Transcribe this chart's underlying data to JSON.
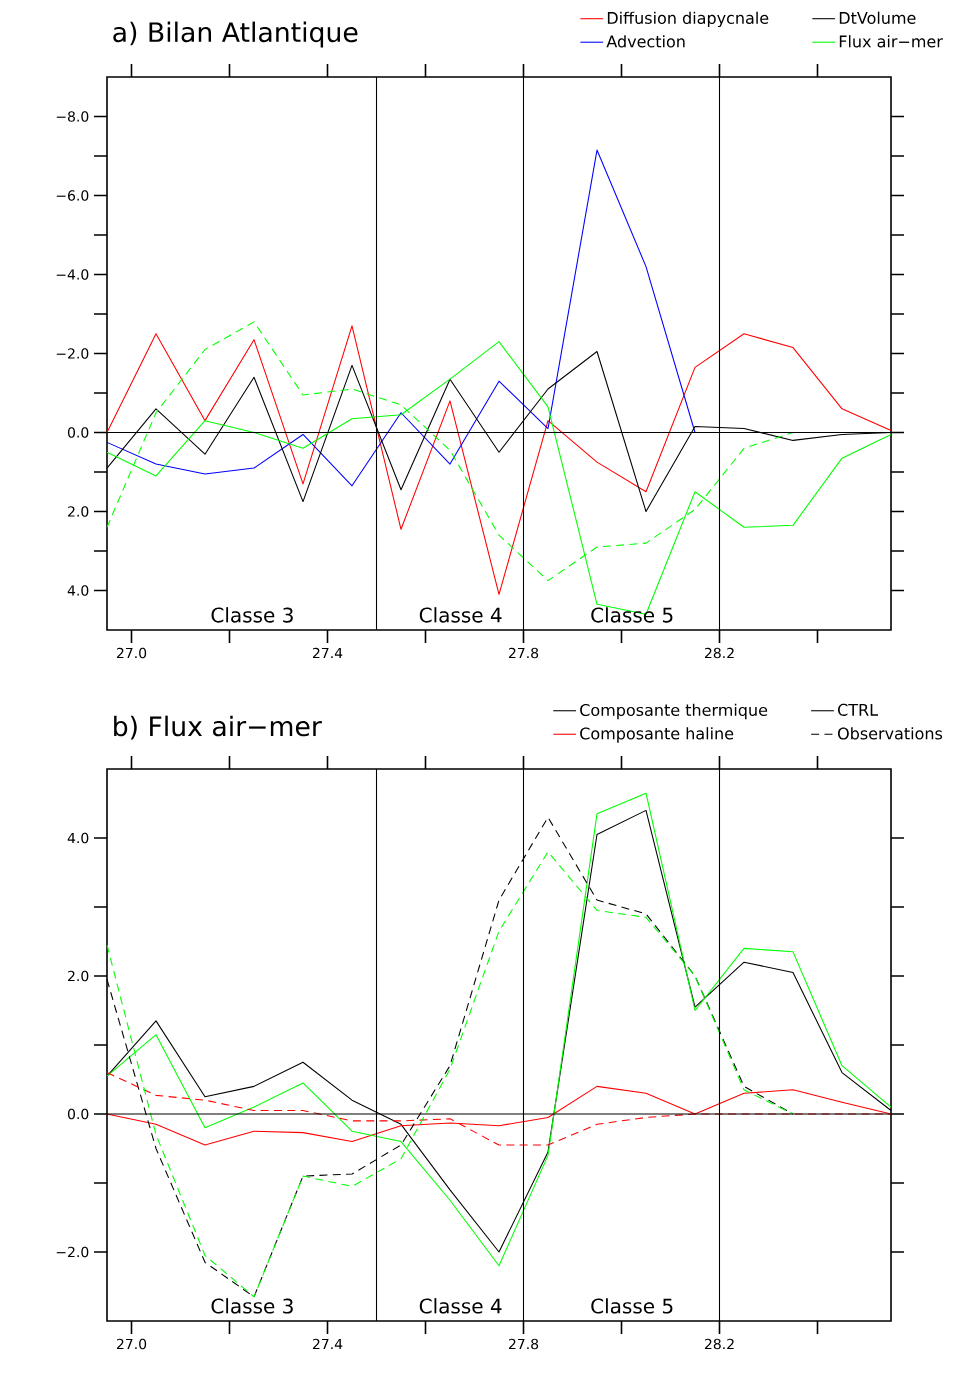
{
  "chart_data": [
    {
      "type": "line",
      "title": "a) Bilan Atlantique",
      "x": [
        26.95,
        27.05,
        27.15,
        27.25,
        27.35,
        27.45,
        27.55,
        27.65,
        27.75,
        27.85,
        27.95,
        28.05,
        28.15,
        28.25,
        28.35,
        28.45,
        28.55
      ],
      "series": [
        {
          "name": "Diffusion diapycnale",
          "color": "#ff0000",
          "values": [
            0,
            -2.5,
            -0.3,
            -2.35,
            1.3,
            -2.7,
            2.45,
            -0.8,
            4.1,
            -0.3,
            0.75,
            1.5,
            -1.65,
            -2.5,
            -2.15,
            -0.6,
            -0.05
          ]
        },
        {
          "name": "Advection",
          "color": "#0000ff",
          "values": [
            0.25,
            0.8,
            1.05,
            0.9,
            0.05,
            1.35,
            -0.5,
            0.8,
            -1.3,
            -0.1,
            -7.15,
            -4.2,
            0,
            0,
            null,
            null,
            null
          ]
        },
        {
          "name": "DtVolume",
          "color": "#000000",
          "values": [
            0.9,
            -0.6,
            0.55,
            -1.4,
            1.75,
            -1.7,
            1.45,
            -1.35,
            0.5,
            -1.1,
            -2.05,
            2.0,
            -0.15,
            -0.1,
            0.2,
            0.05,
            0
          ]
        },
        {
          "name": "Flux air−mer",
          "color": "#00ff00",
          "values": [
            0.5,
            1.1,
            -0.3,
            0,
            0.4,
            -0.35,
            -0.45,
            -1.35,
            -2.3,
            -0.65,
            4.35,
            4.6,
            1.5,
            2.4,
            2.35,
            0.65,
            0.05
          ]
        },
        {
          "color": "#00ff00",
          "line_style": "dashed",
          "values": [
            2.4,
            -0.5,
            -2.1,
            -2.8,
            -0.95,
            -1.1,
            -0.7,
            0.45,
            2.6,
            3.75,
            2.9,
            2.8,
            1.95,
            0.4,
            0,
            null,
            null
          ]
        }
      ],
      "xlim": [
        26.95,
        28.55
      ],
      "xticks": [
        {
          "value": 27.0,
          "label": "27.0"
        },
        {
          "value": 27.2,
          "label": null
        },
        {
          "value": 27.4,
          "label": "27.4"
        },
        {
          "value": 27.6,
          "label": null
        },
        {
          "value": 27.8,
          "label": "27.8"
        },
        {
          "value": 28.0,
          "label": null
        },
        {
          "value": 28.2,
          "label": "28.2"
        },
        {
          "value": 28.4,
          "label": null
        }
      ],
      "ylim": [
        5,
        -9
      ],
      "yticks": [
        {
          "value": -8,
          "label": "−8.0"
        },
        {
          "value": -7,
          "label": null
        },
        {
          "value": -6,
          "label": "−6.0"
        },
        {
          "value": -5,
          "label": null
        },
        {
          "value": -4,
          "label": "−4.0"
        },
        {
          "value": -3,
          "label": null
        },
        {
          "value": -2,
          "label": "−2.0"
        },
        {
          "value": -1,
          "label": null
        },
        {
          "value": 0,
          "label": "0.0"
        },
        {
          "value": 1,
          "label": null
        },
        {
          "value": 2,
          "label": "2.0"
        },
        {
          "value": 3,
          "label": null
        },
        {
          "value": 4,
          "label": "4.0"
        }
      ],
      "ref_lines": [
        {
          "axis": "y",
          "value": 0,
          "color": "#000000"
        },
        {
          "axis": "x",
          "value": 27.5,
          "color": "#000000"
        },
        {
          "axis": "x",
          "value": 27.8,
          "color": "#000000"
        },
        {
          "axis": "x",
          "value": 28.2,
          "color": "#000000"
        }
      ],
      "annotations": [
        "Classe  3",
        "Classe  4",
        "Classe  5"
      ],
      "legend": "top right"
    },
    {
      "type": "line",
      "title": "b) Flux air−mer",
      "x": [
        26.95,
        27.05,
        27.15,
        27.25,
        27.35,
        27.45,
        27.55,
        27.65,
        27.75,
        27.85,
        27.95,
        28.05,
        28.15,
        28.25,
        28.35,
        28.45,
        28.55
      ],
      "series": [
        {
          "name": "Composante thermique",
          "color": "#000000",
          "values": [
            0.55,
            1.35,
            0.25,
            0.4,
            0.75,
            0.2,
            -0.15,
            -1.1,
            -2.0,
            -0.55,
            4.05,
            4.4,
            1.55,
            2.2,
            2.05,
            0.6,
            0.05
          ]
        },
        {
          "name": "Composante haline",
          "color": "#ff0000",
          "values": [
            0,
            -0.15,
            -0.45,
            -0.25,
            -0.27,
            -0.4,
            -0.17,
            -0.13,
            -0.17,
            -0.05,
            0.4,
            0.3,
            0,
            0.3,
            0.35,
            0.17,
            0
          ]
        },
        {
          "color": "#00ff00",
          "values": [
            0.55,
            1.15,
            -0.2,
            0.1,
            0.45,
            -0.25,
            -0.4,
            -1.25,
            -2.2,
            -0.6,
            4.35,
            4.65,
            1.5,
            2.4,
            2.35,
            0.7,
            0.1
          ]
        },
        {
          "color": "#000000",
          "line_style": "dashed",
          "values": [
            1.95,
            -0.5,
            -2.15,
            -2.65,
            -0.9,
            -0.87,
            -0.45,
            0.7,
            3.1,
            4.3,
            3.1,
            2.9,
            2.0,
            0.4,
            0,
            null,
            null
          ]
        },
        {
          "color": "#ff0000",
          "line_style": "dashed",
          "values": [
            0.6,
            0.27,
            0.2,
            0.05,
            0.05,
            -0.1,
            -0.1,
            -0.07,
            -0.45,
            -0.45,
            -0.15,
            -0.05,
            0,
            0,
            0,
            0,
            0
          ]
        },
        {
          "color": "#00ff00",
          "line_style": "dashed",
          "values": [
            2.45,
            -0.3,
            -2.05,
            -2.65,
            -0.9,
            -1.05,
            -0.65,
            0.65,
            2.65,
            3.8,
            2.95,
            2.85,
            2.0,
            0.35,
            0,
            null,
            null
          ]
        }
      ],
      "xlim": [
        26.95,
        28.55
      ],
      "xticks": [
        {
          "value": 27.0,
          "label": "27.0"
        },
        {
          "value": 27.2,
          "label": null
        },
        {
          "value": 27.4,
          "label": "27.4"
        },
        {
          "value": 27.6,
          "label": null
        },
        {
          "value": 27.8,
          "label": "27.8"
        },
        {
          "value": 28.0,
          "label": null
        },
        {
          "value": 28.2,
          "label": "28.2"
        },
        {
          "value": 28.4,
          "label": null
        }
      ],
      "ylim": [
        -3,
        5
      ],
      "yticks": [
        {
          "value": -2,
          "label": "−2.0"
        },
        {
          "value": -1,
          "label": null
        },
        {
          "value": 0,
          "label": "0.0"
        },
        {
          "value": 1,
          "label": null
        },
        {
          "value": 2,
          "label": "2.0"
        },
        {
          "value": 3,
          "label": null
        },
        {
          "value": 4,
          "label": "4.0"
        }
      ],
      "ref_lines": [
        {
          "axis": "y",
          "value": 0,
          "color": "#000000"
        },
        {
          "axis": "x",
          "value": 27.5,
          "color": "#000000"
        },
        {
          "axis": "x",
          "value": 27.8,
          "color": "#000000"
        },
        {
          "axis": "x",
          "value": 28.2,
          "color": "#000000"
        }
      ],
      "annotations": [
        "Classe  3",
        "Classe  4",
        "Classe  5",
        "CTRL",
        "Observations"
      ],
      "legend": "top right"
    }
  ]
}
